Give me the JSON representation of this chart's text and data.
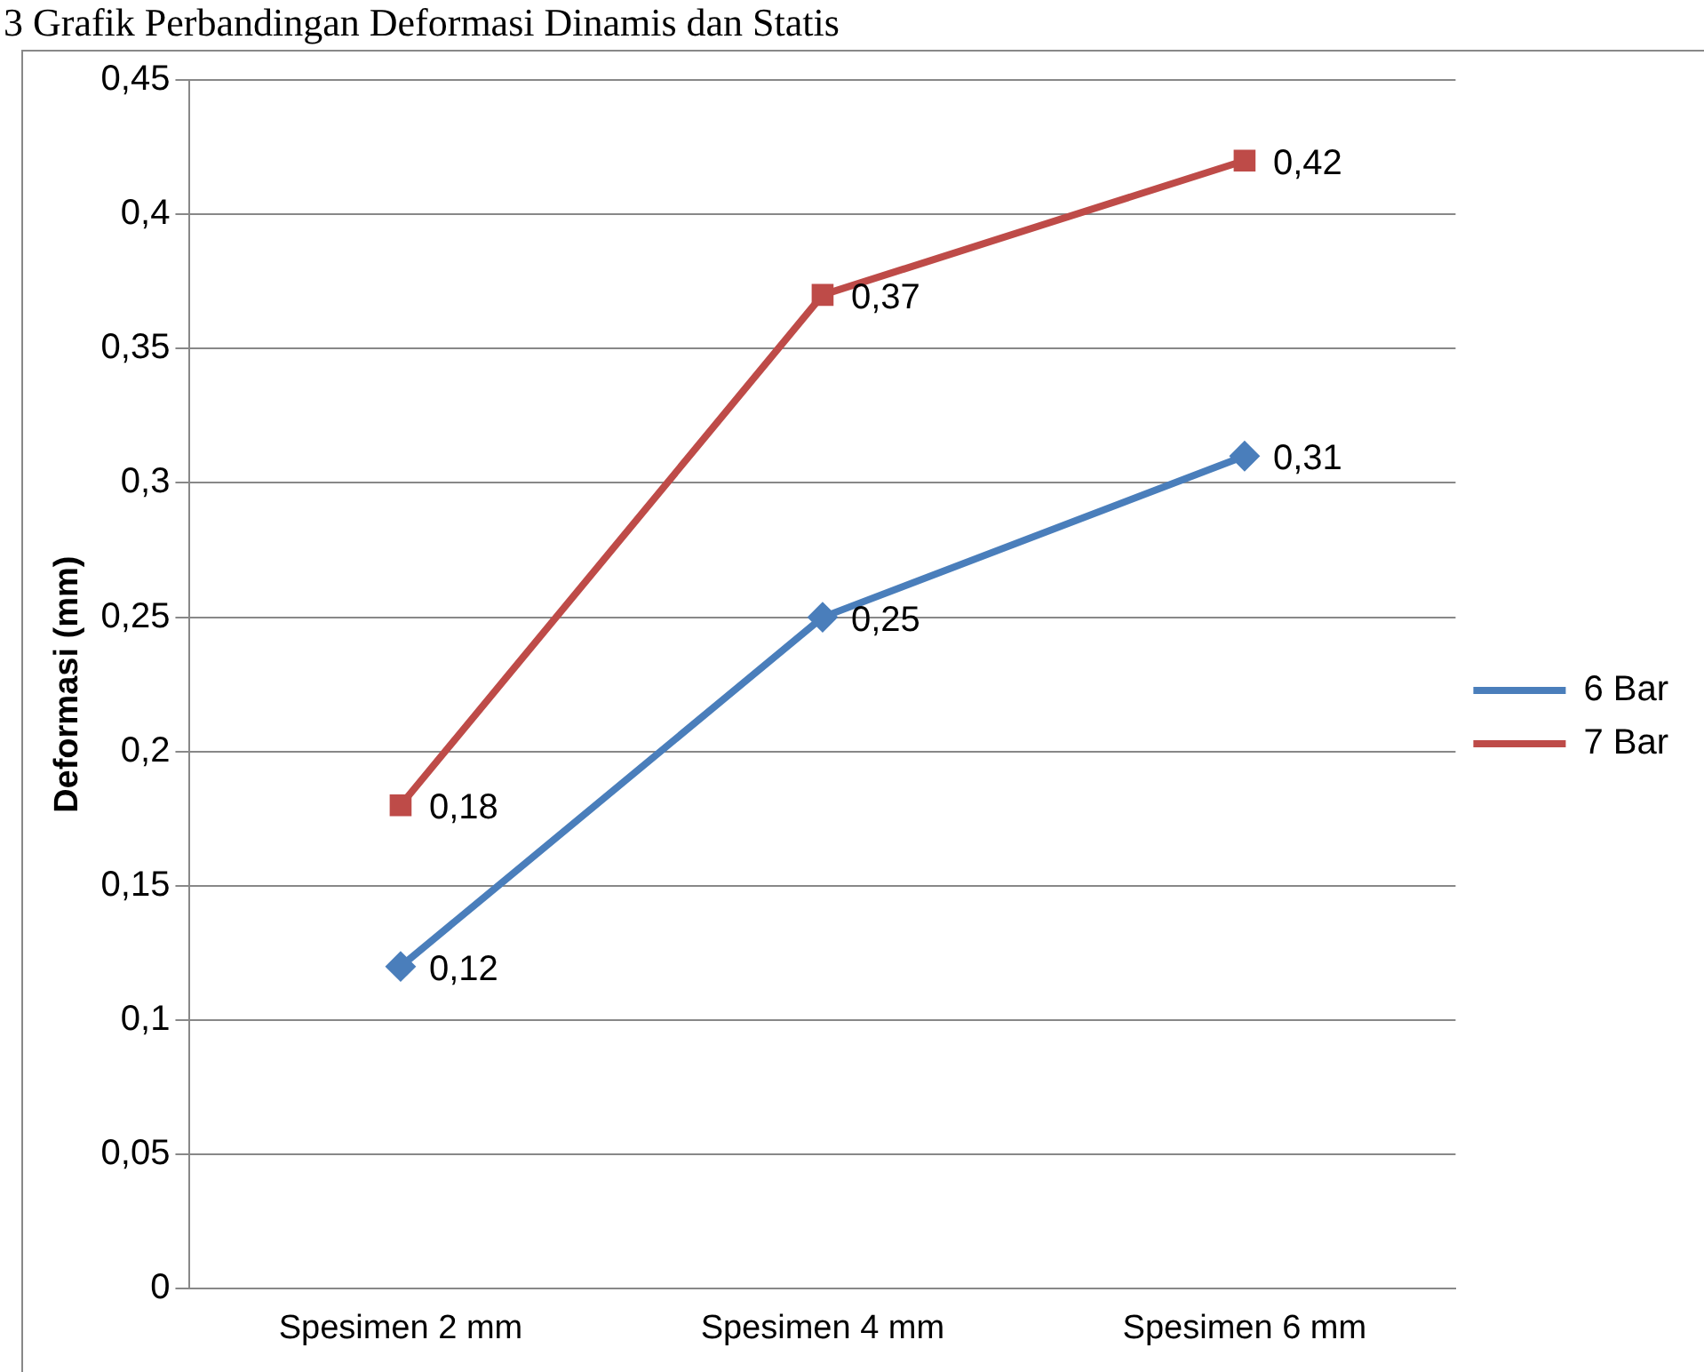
{
  "chart_data": {
    "type": "line",
    "title": "3  Grafik Perbandingan Deformasi Dinamis dan Statis",
    "ylabel": "Deformasi (mm)",
    "categories": [
      "Spesimen 2 mm",
      "Spesimen 4 mm",
      "Spesimen 6 mm"
    ],
    "series": [
      {
        "name": "6 Bar",
        "color": "#4a7ebb",
        "marker": "diamond",
        "values": [
          0.12,
          0.25,
          0.31
        ],
        "value_labels": [
          "0,12",
          "0,25",
          "0,31"
        ]
      },
      {
        "name": "7 Bar",
        "color": "#be4b48",
        "marker": "square",
        "values": [
          0.18,
          0.37,
          0.42
        ],
        "value_labels": [
          "0,18",
          "0,37",
          "0,42"
        ]
      }
    ],
    "ylim": [
      0,
      0.45
    ],
    "yticks": [
      {
        "value": 0,
        "label": "0"
      },
      {
        "value": 0.05,
        "label": "0,05"
      },
      {
        "value": 0.1,
        "label": "0,1"
      },
      {
        "value": 0.15,
        "label": "0,15"
      },
      {
        "value": 0.2,
        "label": "0,2"
      },
      {
        "value": 0.25,
        "label": "0,25"
      },
      {
        "value": 0.3,
        "label": "0,3"
      },
      {
        "value": 0.35,
        "label": "0,35"
      },
      {
        "value": 0.4,
        "label": "0,4"
      },
      {
        "value": 0.45,
        "label": "0,45"
      }
    ],
    "grid": "y",
    "legend": "right"
  }
}
